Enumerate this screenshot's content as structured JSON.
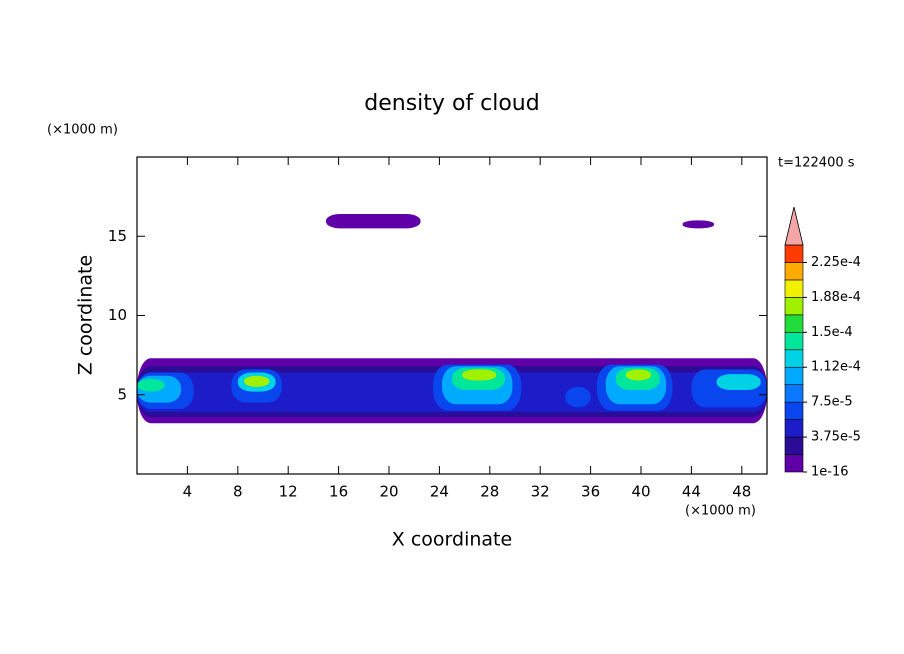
{
  "chart_data": {
    "type": "contour",
    "title": "density of cloud",
    "x_label": "X coordinate",
    "y_label": "Z coordinate",
    "x_unit": "(×1000 m)",
    "y_unit": "(×1000 m)",
    "time_label": "t=122400 s",
    "xlim": [
      0,
      50
    ],
    "ylim": [
      0,
      20
    ],
    "xticks": [
      4,
      8,
      12,
      16,
      20,
      24,
      28,
      32,
      36,
      40,
      44,
      48
    ],
    "yticks": [
      5,
      10,
      15
    ],
    "cblim": [
      1e-16,
      0.00024375
    ],
    "levels": [
      1e-16,
      1.875e-05,
      3.75e-05,
      5.625e-05,
      7.5e-05,
      9.375e-05,
      0.0001125,
      0.00013125,
      0.00015,
      0.00016875,
      0.0001875,
      0.00020625,
      0.000225
    ],
    "colors": [
      "#5f00a8",
      "#2a0c96",
      "#1c1cc8",
      "#0a46ee",
      "#0a78ff",
      "#00aaff",
      "#00d2e6",
      "#00e69a",
      "#22dc3c",
      "#a0f000",
      "#f0f000",
      "#ffaa00",
      "#ff3c00"
    ],
    "extend_color": "#f4a6a6",
    "cbticks": [
      1e-16,
      {
        "value": 3.75e-05,
        "label": "3.75e-5"
      },
      {
        "value": 7.5e-05,
        "label": "7.5e-5"
      },
      {
        "value": 0.0001125,
        "label": "1.12e-4"
      },
      {
        "value": 0.00015,
        "label": "1.5e-4"
      },
      {
        "value": 0.0001875,
        "label": "1.88e-4"
      },
      {
        "value": 0.000225,
        "label": "2.25e-4"
      }
    ],
    "regions": [
      {
        "value": 1e-16,
        "x": [
          0,
          50
        ],
        "z": [
          3.2,
          7.3
        ]
      },
      {
        "value": 1e-16,
        "x": [
          15,
          22.5
        ],
        "z": [
          15.5,
          16.4
        ]
      },
      {
        "value": 1e-16,
        "x": [
          43.3,
          45.8
        ],
        "z": [
          15.5,
          16.0
        ]
      },
      {
        "value": 1.875e-05,
        "x": [
          0,
          50
        ],
        "z": [
          3.6,
          6.8
        ]
      },
      {
        "value": 3.75e-05,
        "x": [
          0,
          50
        ],
        "z": [
          3.9,
          6.4
        ]
      },
      {
        "value": 5.625e-05,
        "x": [
          0,
          4.5
        ],
        "z": [
          4.1,
          6.4
        ]
      },
      {
        "value": 9.375e-05,
        "x": [
          0,
          3.5
        ],
        "z": [
          4.5,
          6.2
        ]
      },
      {
        "value": 0.00013125,
        "x": [
          0,
          2.2
        ],
        "z": [
          5.2,
          6.0
        ]
      },
      {
        "value": 5.625e-05,
        "x": [
          7.5,
          11.5
        ],
        "z": [
          4.5,
          6.6
        ]
      },
      {
        "value": 0.0001125,
        "x": [
          8,
          11
        ],
        "z": [
          5.2,
          6.4
        ]
      },
      {
        "value": 0.00016875,
        "x": [
          8.5,
          10.5
        ],
        "z": [
          5.5,
          6.2
        ]
      },
      {
        "value": 5.625e-05,
        "x": [
          23.5,
          30.5
        ],
        "z": [
          4.0,
          6.9
        ]
      },
      {
        "value": 9.375e-05,
        "x": [
          24.2,
          29.8
        ],
        "z": [
          4.4,
          6.8
        ]
      },
      {
        "value": 0.00013125,
        "x": [
          25,
          29.2
        ],
        "z": [
          5.3,
          6.7
        ]
      },
      {
        "value": 0.00016875,
        "x": [
          25.8,
          28.5
        ],
        "z": [
          5.9,
          6.6
        ]
      },
      {
        "value": 5.625e-05,
        "x": [
          36.5,
          42.5
        ],
        "z": [
          4.0,
          6.9
        ]
      },
      {
        "value": 9.375e-05,
        "x": [
          37.2,
          42
        ],
        "z": [
          4.4,
          6.8
        ]
      },
      {
        "value": 0.00013125,
        "x": [
          38,
          41.5
        ],
        "z": [
          5.3,
          6.7
        ]
      },
      {
        "value": 0.00016875,
        "x": [
          38.8,
          40.8
        ],
        "z": [
          5.9,
          6.6
        ]
      },
      {
        "value": 5.625e-05,
        "x": [
          44,
          50
        ],
        "z": [
          4.2,
          6.6
        ]
      },
      {
        "value": 0.0001125,
        "x": [
          46,
          49.5
        ],
        "z": [
          5.3,
          6.3
        ]
      },
      {
        "value": 5.625e-05,
        "x": [
          34,
          36
        ],
        "z": [
          4.2,
          5.5
        ]
      }
    ]
  }
}
